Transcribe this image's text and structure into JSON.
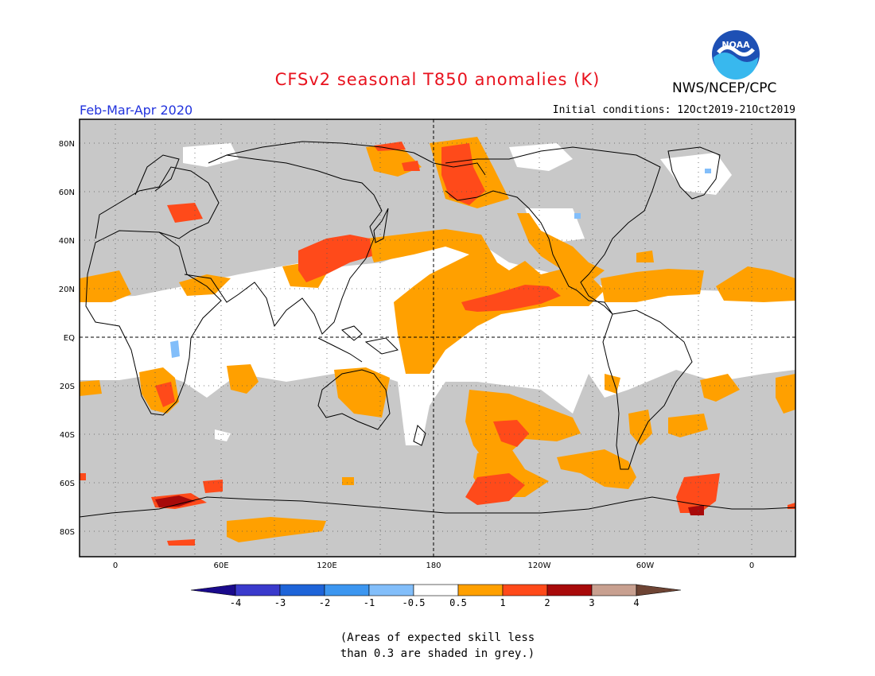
{
  "header": {
    "title": "CFSv2 seasonal T850 anomalies (K)",
    "agency": "NWS/NCEP/CPC",
    "logo_text": "NOAA",
    "season": "Feb-Mar-Apr 2020",
    "initial_conditions": "Initial conditions: 12Oct2019-21Oct2019"
  },
  "map": {
    "lat_labels": [
      "80N",
      "60N",
      "40N",
      "20N",
      "EQ",
      "20S",
      "40S",
      "60S",
      "80S"
    ],
    "lon_labels": [
      "0",
      "60E",
      "120E",
      "180",
      "120W",
      "60W",
      "0"
    ]
  },
  "legend": {
    "colors": [
      "#1a0a8c",
      "#3a3acc",
      "#1e64d8",
      "#3c96f0",
      "#82befa",
      "#ffffff",
      "#ffa000",
      "#ff4a1a",
      "#a80a0a",
      "#c8a090",
      "#6e4434"
    ],
    "labels": [
      "-4",
      "-3",
      "-2",
      "-1",
      "-0.5",
      "0.5",
      "1",
      "2",
      "3",
      "4"
    ]
  },
  "colors": {
    "grey_mask": "#c8c8c8",
    "anom_0_5_to_1": "#ffa000",
    "anom_1_to_2": "#ff4a1a",
    "anom_2_to_3": "#a80a0a",
    "anom_neg_0_5_to_1": "#82befa"
  },
  "footnote": {
    "line1": "(Areas of expected skill less",
    "line2": "than 0.3 are shaded in grey.)"
  }
}
